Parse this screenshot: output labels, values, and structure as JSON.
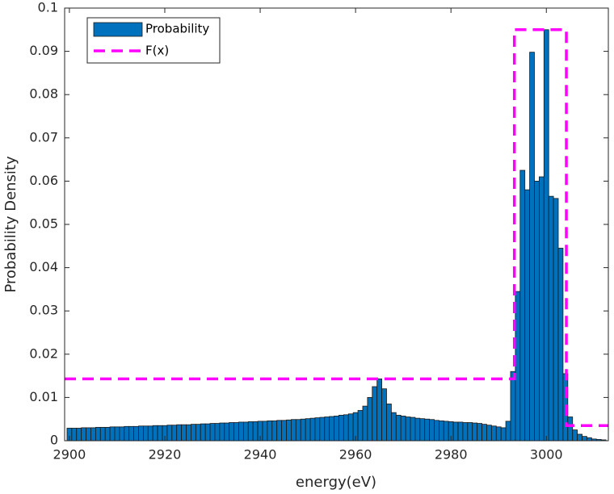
{
  "chart_data": {
    "type": "histogram",
    "xlabel": "energy(eV)",
    "ylabel": "Probability Density",
    "xlim": [
      2899,
      3013
    ],
    "ylim": [
      0,
      0.1
    ],
    "xticks": [
      2900,
      2920,
      2940,
      2960,
      2980,
      3000
    ],
    "yticks": [
      0,
      0.01,
      0.02,
      0.03,
      0.04,
      0.05,
      0.06,
      0.07,
      0.08,
      0.09,
      0.1
    ],
    "grid": false,
    "legend": "top-left",
    "bins": [
      2899.5,
      2900.5,
      2901.5,
      2902.5,
      2903.5,
      2904.5,
      2905.5,
      2906.5,
      2907.5,
      2908.5,
      2909.5,
      2910.5,
      2911.5,
      2912.5,
      2913.5,
      2914.5,
      2915.5,
      2916.5,
      2917.5,
      2918.5,
      2919.5,
      2920.5,
      2921.5,
      2922.5,
      2923.5,
      2924.5,
      2925.5,
      2926.5,
      2927.5,
      2928.5,
      2929.5,
      2930.5,
      2931.5,
      2932.5,
      2933.5,
      2934.5,
      2935.5,
      2936.5,
      2937.5,
      2938.5,
      2939.5,
      2940.5,
      2941.5,
      2942.5,
      2943.5,
      2944.5,
      2945.5,
      2946.5,
      2947.5,
      2948.5,
      2949.5,
      2950.5,
      2951.5,
      2952.5,
      2953.5,
      2954.5,
      2955.5,
      2956.5,
      2957.5,
      2958.5,
      2959.5,
      2960.5,
      2961.5,
      2962.5,
      2963.5,
      2964.5,
      2965.5,
      2966.5,
      2967.5,
      2968.5,
      2969.5,
      2970.5,
      2971.5,
      2972.5,
      2973.5,
      2974.5,
      2975.5,
      2976.5,
      2977.5,
      2978.5,
      2979.5,
      2980.5,
      2981.5,
      2982.5,
      2983.5,
      2984.5,
      2985.5,
      2986.5,
      2987.5,
      2988.5,
      2989.5,
      2990.5,
      2991.5,
      2992.5,
      2993.5,
      2994.5,
      2995.5,
      2996.5,
      2997.5,
      2998.5,
      2999.5,
      3000.5,
      3001.5,
      3002.5,
      3003.5,
      3004.5,
      3005.5,
      3006.5,
      3007.5,
      3008.5,
      3009.5,
      3010.5,
      3011.5,
      3012.5
    ],
    "series": [
      {
        "name": "Probability",
        "type": "histogram",
        "color": "#0072bd",
        "edgecolor": "#1a1a1a",
        "values": [
          0.0029,
          0.0029,
          0.0029,
          0.003,
          0.003,
          0.003,
          0.0031,
          0.0031,
          0.0031,
          0.0032,
          0.0032,
          0.0032,
          0.0033,
          0.0033,
          0.0033,
          0.0034,
          0.0034,
          0.0034,
          0.0035,
          0.0035,
          0.0035,
          0.0036,
          0.0036,
          0.0037,
          0.0037,
          0.0037,
          0.0038,
          0.0038,
          0.0039,
          0.0039,
          0.004,
          0.004,
          0.0041,
          0.0041,
          0.0042,
          0.0042,
          0.0043,
          0.0043,
          0.0044,
          0.0044,
          0.0045,
          0.0045,
          0.0046,
          0.0046,
          0.0047,
          0.0047,
          0.0048,
          0.0049,
          0.0049,
          0.005,
          0.0051,
          0.0052,
          0.0053,
          0.0054,
          0.0055,
          0.0056,
          0.0057,
          0.0059,
          0.006,
          0.0062,
          0.0065,
          0.007,
          0.008,
          0.01,
          0.0125,
          0.0143,
          0.012,
          0.0085,
          0.0065,
          0.0059,
          0.0057,
          0.0055,
          0.0054,
          0.0052,
          0.0051,
          0.005,
          0.0049,
          0.0047,
          0.0046,
          0.0045,
          0.0044,
          0.0043,
          0.0043,
          0.0042,
          0.0042,
          0.0041,
          0.004,
          0.0038,
          0.0036,
          0.0034,
          0.0032,
          0.003,
          0.0045,
          0.016,
          0.0345,
          0.0625,
          0.058,
          0.0898,
          0.06,
          0.061,
          0.095,
          0.0565,
          0.056,
          0.0445,
          0.0155,
          0.0055,
          0.0025,
          0.0015,
          0.001,
          0.0007,
          0.0004,
          0.0003,
          0.0002
        ]
      },
      {
        "name": "F(x)",
        "type": "line",
        "color": "#ff00ff",
        "style": "dashed",
        "x": [
          2899,
          2993.3,
          2993.3,
          3004.2,
          3004.2,
          3013
        ],
        "values": [
          0.0143,
          0.0143,
          0.095,
          0.095,
          0.0035,
          0.0035
        ]
      }
    ]
  }
}
